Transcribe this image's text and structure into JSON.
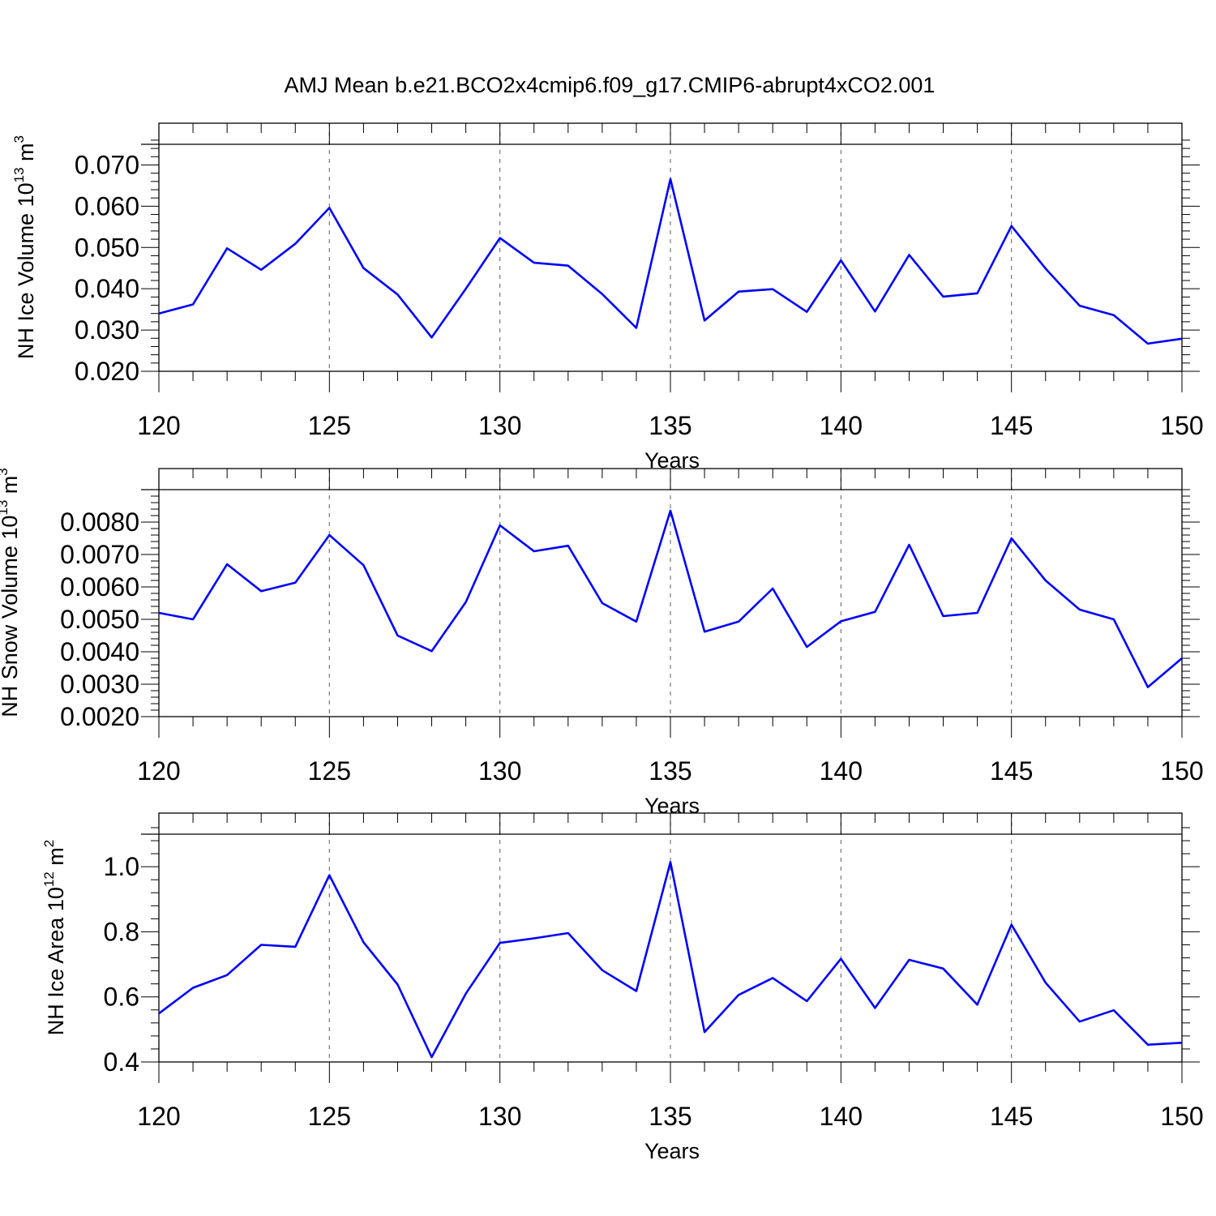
{
  "figure": {
    "title": "AMJ Mean b.e21.BCO2x4cmip6.f09_g17.CMIP6-abrupt4xCO2.001"
  },
  "chart_data": [
    {
      "type": "line",
      "title": "",
      "xlabel": "Years",
      "ylabel": {
        "text": "NH Ice Volume 10",
        "superscript": "13",
        "suffix": " m",
        "unit_superscript": "3"
      },
      "xlim": [
        120,
        150
      ],
      "ylim": [
        0.02,
        0.075
      ],
      "xticks": [
        120,
        125,
        130,
        135,
        140,
        145,
        150
      ],
      "xtick_labels": [
        "120",
        "125",
        "130",
        "135",
        "140",
        "145",
        "150"
      ],
      "yticks": [
        0.02,
        0.03,
        0.04,
        0.05,
        0.06,
        0.07
      ],
      "ytick_labels": [
        "0.020",
        "0.030",
        "0.040",
        "0.050",
        "0.060",
        "0.070"
      ],
      "grid": "dashed vertical at major x ticks",
      "color": "#0000ff",
      "x": [
        120,
        121,
        122,
        123,
        124,
        125,
        126,
        127,
        128,
        129,
        130,
        131,
        132,
        133,
        134,
        135,
        136,
        137,
        138,
        139,
        140,
        141,
        142,
        143,
        144,
        145,
        146,
        147,
        148,
        149,
        150
      ],
      "y": [
        0.034,
        0.0362,
        0.0498,
        0.0446,
        0.0509,
        0.0596,
        0.045,
        0.0386,
        0.0282,
        0.04,
        0.0523,
        0.0463,
        0.0456,
        0.0387,
        0.0305,
        0.0666,
        0.0323,
        0.0393,
        0.0399,
        0.0344,
        0.0469,
        0.0345,
        0.0482,
        0.0381,
        0.0389,
        0.0552,
        0.0449,
        0.0359,
        0.0336,
        0.0267,
        0.0279
      ]
    },
    {
      "type": "line",
      "title": "",
      "xlabel": "Years",
      "ylabel": {
        "text": "NH Snow Volume 10",
        "superscript": "13",
        "suffix": " m",
        "unit_superscript": "3"
      },
      "xlim": [
        120,
        150
      ],
      "ylim": [
        0.002,
        0.009
      ],
      "xticks": [
        120,
        125,
        130,
        135,
        140,
        145,
        150
      ],
      "xtick_labels": [
        "120",
        "125",
        "130",
        "135",
        "140",
        "145",
        "150"
      ],
      "yticks": [
        0.002,
        0.003,
        0.004,
        0.005,
        0.006,
        0.007,
        0.008
      ],
      "ytick_labels": [
        "0.0020",
        "0.0030",
        "0.0040",
        "0.0050",
        "0.0060",
        "0.0070",
        "0.0080"
      ],
      "grid": "dashed vertical at major x ticks",
      "color": "#0000ff",
      "x": [
        120,
        121,
        122,
        123,
        124,
        125,
        126,
        127,
        128,
        129,
        130,
        131,
        132,
        133,
        134,
        135,
        136,
        137,
        138,
        139,
        140,
        141,
        142,
        143,
        144,
        145,
        146,
        147,
        148,
        149,
        150
      ],
      "y": [
        0.0052,
        0.005,
        0.0067,
        0.00587,
        0.00613,
        0.0076,
        0.00667,
        0.0045,
        0.00402,
        0.00553,
        0.0079,
        0.0071,
        0.00727,
        0.0055,
        0.00493,
        0.00835,
        0.00462,
        0.00493,
        0.00595,
        0.00415,
        0.00494,
        0.00523,
        0.0073,
        0.0051,
        0.0052,
        0.0075,
        0.0062,
        0.0053,
        0.005,
        0.00291,
        0.0038
      ]
    },
    {
      "type": "line",
      "title": "",
      "xlabel": "Years",
      "ylabel": {
        "text": "NH Ice Area 10",
        "superscript": "12",
        "suffix": " m",
        "unit_superscript": "2"
      },
      "xlim": [
        120,
        150
      ],
      "ylim": [
        0.4,
        1.1
      ],
      "xticks": [
        120,
        125,
        130,
        135,
        140,
        145,
        150
      ],
      "xtick_labels": [
        "120",
        "125",
        "130",
        "135",
        "140",
        "145",
        "150"
      ],
      "yticks": [
        0.4,
        0.6,
        0.8,
        1.0
      ],
      "ytick_labels": [
        "0.4",
        "0.6",
        "0.8",
        "1.0"
      ],
      "grid": "dashed vertical at major x ticks",
      "color": "#0000ff",
      "x": [
        120,
        121,
        122,
        123,
        124,
        125,
        126,
        127,
        128,
        129,
        130,
        131,
        132,
        133,
        134,
        135,
        136,
        137,
        138,
        139,
        140,
        141,
        142,
        143,
        144,
        145,
        146,
        147,
        148,
        149,
        150
      ],
      "y": [
        0.549,
        0.628,
        0.667,
        0.76,
        0.754,
        0.974,
        0.768,
        0.638,
        0.415,
        0.61,
        0.766,
        0.78,
        0.796,
        0.682,
        0.618,
        1.014,
        0.492,
        0.606,
        0.658,
        0.587,
        0.717,
        0.566,
        0.714,
        0.687,
        0.576,
        0.822,
        0.644,
        0.524,
        0.559,
        0.453,
        0.459
      ]
    }
  ]
}
